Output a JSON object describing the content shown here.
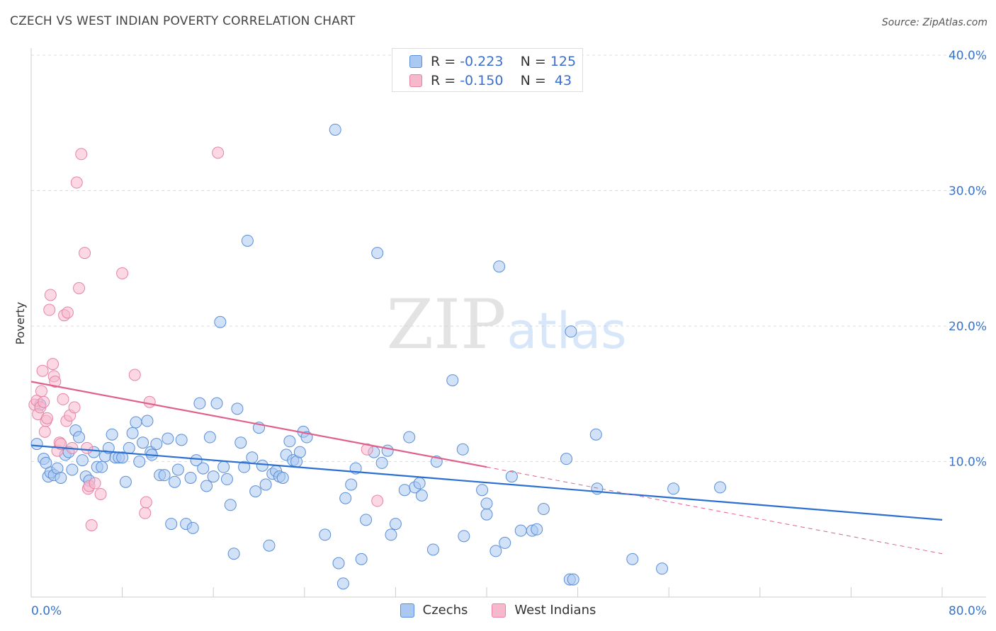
{
  "title": "CZECH VS WEST INDIAN POVERTY CORRELATION CHART",
  "source": "Source: ZipAtlas.com",
  "watermark": {
    "zip": "ZIP",
    "atlas": "atlas"
  },
  "legend": {
    "rows": [
      {
        "r_label": "R = ",
        "r_value": "-0.223",
        "n_label": "N = ",
        "n_value": "125"
      },
      {
        "r_label": "R = ",
        "r_value": "-0.150",
        "n_label": "N = ",
        "n_value": " 43"
      }
    ]
  },
  "colors": {
    "czech_fill": "#a9c8f2",
    "czech_stroke": "#5b8ed6",
    "czech_line": "#2a6fd1",
    "wi_fill": "#f7b8cc",
    "wi_stroke": "#e683a4",
    "wi_line": "#e0608c",
    "tick_label": "#3a74c9",
    "grid": "#dddddd"
  },
  "chart_data": {
    "type": "scatter",
    "title": "CZECH VS WEST INDIAN POVERTY CORRELATION CHART",
    "ylabel": "Poverty",
    "xlabel": "",
    "xlim": [
      0,
      80
    ],
    "ylim": [
      0,
      40
    ],
    "x_tick_labels": [
      "0.0%",
      "80.0%"
    ],
    "y_ticks": [
      10,
      20,
      30,
      40
    ],
    "y_tick_labels": [
      "10.0%",
      "20.0%",
      "30.0%",
      "40.0%"
    ],
    "grid": true,
    "legend_placement": "bottom",
    "series": [
      {
        "name": "Czechs",
        "r": -0.223,
        "n": 125,
        "trend": {
          "x": [
            0,
            80
          ],
          "y": [
            11.2,
            5.7
          ]
        },
        "points": [
          [
            0.5,
            11.3
          ],
          [
            0.8,
            14.2
          ],
          [
            1.1,
            10.2
          ],
          [
            1.3,
            9.9
          ],
          [
            1.5,
            8.9
          ],
          [
            1.7,
            9.2
          ],
          [
            2.0,
            9.0
          ],
          [
            2.3,
            9.5
          ],
          [
            2.6,
            8.8
          ],
          [
            3.0,
            10.5
          ],
          [
            3.3,
            10.7
          ],
          [
            3.6,
            9.4
          ],
          [
            3.9,
            12.3
          ],
          [
            4.2,
            11.8
          ],
          [
            4.5,
            10.1
          ],
          [
            4.8,
            8.9
          ],
          [
            5.1,
            8.6
          ],
          [
            5.5,
            10.7
          ],
          [
            5.8,
            9.6
          ],
          [
            6.2,
            9.6
          ],
          [
            6.5,
            10.4
          ],
          [
            6.8,
            11.0
          ],
          [
            7.1,
            12.0
          ],
          [
            7.4,
            10.3
          ],
          [
            7.7,
            10.3
          ],
          [
            8.0,
            10.3
          ],
          [
            8.3,
            8.5
          ],
          [
            8.6,
            11.0
          ],
          [
            8.9,
            12.1
          ],
          [
            9.2,
            12.9
          ],
          [
            9.5,
            10.0
          ],
          [
            9.8,
            11.4
          ],
          [
            10.2,
            13.0
          ],
          [
            10.5,
            10.7
          ],
          [
            10.6,
            10.5
          ],
          [
            11.0,
            11.3
          ],
          [
            11.3,
            9.0
          ],
          [
            11.7,
            9.0
          ],
          [
            12.0,
            11.7
          ],
          [
            12.3,
            5.4
          ],
          [
            12.6,
            8.5
          ],
          [
            12.9,
            9.4
          ],
          [
            13.2,
            11.6
          ],
          [
            13.6,
            5.4
          ],
          [
            14.0,
            8.8
          ],
          [
            14.2,
            5.1
          ],
          [
            14.5,
            10.1
          ],
          [
            14.8,
            14.3
          ],
          [
            15.1,
            9.5
          ],
          [
            15.4,
            8.2
          ],
          [
            15.7,
            11.8
          ],
          [
            16.0,
            8.9
          ],
          [
            16.3,
            14.3
          ],
          [
            16.6,
            20.3
          ],
          [
            16.9,
            9.6
          ],
          [
            17.2,
            8.7
          ],
          [
            17.5,
            6.8
          ],
          [
            17.8,
            3.2
          ],
          [
            18.1,
            13.9
          ],
          [
            18.4,
            11.4
          ],
          [
            18.7,
            9.6
          ],
          [
            19.0,
            26.3
          ],
          [
            19.4,
            10.3
          ],
          [
            19.7,
            7.8
          ],
          [
            20.0,
            12.5
          ],
          [
            20.3,
            9.7
          ],
          [
            20.6,
            8.3
          ],
          [
            20.9,
            3.8
          ],
          [
            21.2,
            9.1
          ],
          [
            21.5,
            9.3
          ],
          [
            21.8,
            8.9
          ],
          [
            22.1,
            8.8
          ],
          [
            22.4,
            10.5
          ],
          [
            22.7,
            11.5
          ],
          [
            23.0,
            10.1
          ],
          [
            23.3,
            10.0
          ],
          [
            23.6,
            10.7
          ],
          [
            23.9,
            12.2
          ],
          [
            24.2,
            11.8
          ],
          [
            25.8,
            4.6
          ],
          [
            26.7,
            34.5
          ],
          [
            27.0,
            2.5
          ],
          [
            27.4,
            1.0
          ],
          [
            27.6,
            7.3
          ],
          [
            28.1,
            8.3
          ],
          [
            28.5,
            9.5
          ],
          [
            29.0,
            2.8
          ],
          [
            29.4,
            5.7
          ],
          [
            30.1,
            10.7
          ],
          [
            30.4,
            25.4
          ],
          [
            30.8,
            9.9
          ],
          [
            31.3,
            10.8
          ],
          [
            31.6,
            4.6
          ],
          [
            32.0,
            5.4
          ],
          [
            32.8,
            7.9
          ],
          [
            33.2,
            11.8
          ],
          [
            33.7,
            8.1
          ],
          [
            34.1,
            8.4
          ],
          [
            34.3,
            7.5
          ],
          [
            35.3,
            3.5
          ],
          [
            35.6,
            10.0
          ],
          [
            37.0,
            16.0
          ],
          [
            37.9,
            10.9
          ],
          [
            38.0,
            4.5
          ],
          [
            39.6,
            7.9
          ],
          [
            40.0,
            6.1
          ],
          [
            40.0,
            6.9
          ],
          [
            40.8,
            3.4
          ],
          [
            41.1,
            24.4
          ],
          [
            41.6,
            4.0
          ],
          [
            42.2,
            8.9
          ],
          [
            43.0,
            4.9
          ],
          [
            44.0,
            4.9
          ],
          [
            44.4,
            5.0
          ],
          [
            45.0,
            6.5
          ],
          [
            47.3,
            1.3
          ],
          [
            47.4,
            19.6
          ],
          [
            47.6,
            1.3
          ],
          [
            49.6,
            12.0
          ],
          [
            47.0,
            10.2
          ],
          [
            49.7,
            8.0
          ],
          [
            52.8,
            2.8
          ],
          [
            55.4,
            2.1
          ],
          [
            56.4,
            8.0
          ],
          [
            60.5,
            8.1
          ]
        ]
      },
      {
        "name": "West Indians",
        "r": -0.15,
        "n": 43,
        "trend": {
          "x": [
            0,
            40
          ],
          "y": [
            15.9,
            9.6
          ]
        },
        "trend_extension": {
          "x": [
            40,
            80
          ],
          "y": [
            9.6,
            3.2
          ]
        },
        "points": [
          [
            0.3,
            14.2
          ],
          [
            0.5,
            14.5
          ],
          [
            0.6,
            13.5
          ],
          [
            0.8,
            14.0
          ],
          [
            0.9,
            15.2
          ],
          [
            1.0,
            16.7
          ],
          [
            1.1,
            14.4
          ],
          [
            1.2,
            12.2
          ],
          [
            1.3,
            13.0
          ],
          [
            1.4,
            13.2
          ],
          [
            1.6,
            21.2
          ],
          [
            1.7,
            22.3
          ],
          [
            1.9,
            17.2
          ],
          [
            2.0,
            16.3
          ],
          [
            2.1,
            15.9
          ],
          [
            2.3,
            10.8
          ],
          [
            2.5,
            11.4
          ],
          [
            2.6,
            11.3
          ],
          [
            2.8,
            14.6
          ],
          [
            2.9,
            20.8
          ],
          [
            3.1,
            13.0
          ],
          [
            3.2,
            21.0
          ],
          [
            3.4,
            13.4
          ],
          [
            3.6,
            11.0
          ],
          [
            3.8,
            14.0
          ],
          [
            4.0,
            30.6
          ],
          [
            4.2,
            22.8
          ],
          [
            4.4,
            32.7
          ],
          [
            4.7,
            25.4
          ],
          [
            4.9,
            11.0
          ],
          [
            5.0,
            8.0
          ],
          [
            5.1,
            8.2
          ],
          [
            5.3,
            5.3
          ],
          [
            5.6,
            8.4
          ],
          [
            6.1,
            7.6
          ],
          [
            8.0,
            23.9
          ],
          [
            9.1,
            16.4
          ],
          [
            10.0,
            6.2
          ],
          [
            10.1,
            7.0
          ],
          [
            10.4,
            14.4
          ],
          [
            16.4,
            32.8
          ],
          [
            29.5,
            10.9
          ],
          [
            30.4,
            7.1
          ]
        ]
      }
    ]
  }
}
